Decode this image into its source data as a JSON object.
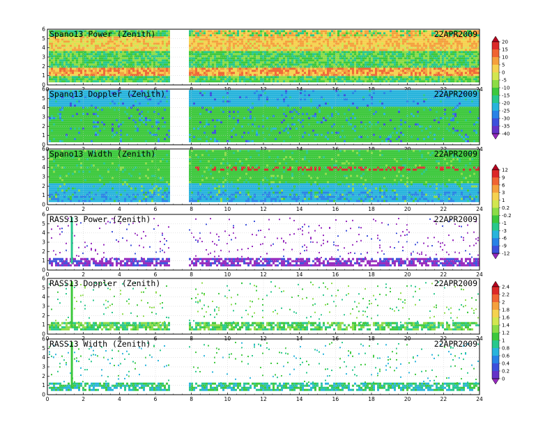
{
  "chart_data": [
    {
      "type": "heatmap",
      "title": "Spano13 Power (Zenith)",
      "date": "22APR2009",
      "xlim": [
        0,
        24
      ],
      "ylim": [
        0,
        6
      ],
      "xticks": [
        "0",
        "2",
        "4",
        "6",
        "8",
        "10",
        "12",
        "14",
        "16",
        "18",
        "20",
        "22",
        "24"
      ],
      "yticks": [
        "0",
        "1",
        "2",
        "3",
        "4",
        "5",
        "6"
      ],
      "data_gap_hours": [
        6.7,
        7.8
      ],
      "grid": true,
      "colorbar_group": "A"
    },
    {
      "type": "heatmap",
      "title": "Spano13 Doppler (Zenith)",
      "date": "22APR2009",
      "xlim": [
        0,
        24
      ],
      "ylim": [
        0,
        6
      ],
      "xticks": [
        "0",
        "2",
        "4",
        "6",
        "8",
        "10",
        "12",
        "14",
        "16",
        "18",
        "20",
        "22",
        "24"
      ],
      "yticks": [
        "0",
        "1",
        "2",
        "3",
        "4",
        "5",
        "6"
      ],
      "data_gap_hours": [
        6.7,
        7.8
      ],
      "grid": true,
      "colorbar_group": "A"
    },
    {
      "type": "heatmap",
      "title": "Spano13 Width (Zenith)",
      "date": "22APR2009",
      "xlim": [
        0,
        24
      ],
      "ylim": [
        0,
        6
      ],
      "xticks": [
        "0",
        "2",
        "4",
        "6",
        "8",
        "10",
        "12",
        "14",
        "16",
        "18",
        "20",
        "22",
        "24"
      ],
      "yticks": [
        "0",
        "1",
        "2",
        "3",
        "4",
        "5",
        "6"
      ],
      "data_gap_hours": [
        6.7,
        7.8
      ],
      "grid": true,
      "colorbar_group": "B"
    },
    {
      "type": "heatmap",
      "title": "RASS13 Power (Zenith)",
      "date": "22APR2009",
      "xlim": [
        0,
        24
      ],
      "ylim": [
        0,
        6
      ],
      "xticks": [
        "0",
        "2",
        "4",
        "6",
        "8",
        "10",
        "12",
        "14",
        "16",
        "18",
        "20",
        "22",
        "24"
      ],
      "yticks": [
        "0",
        "1",
        "2",
        "3",
        "4",
        "5",
        "6"
      ],
      "data_gap_hours": [
        6.7,
        7.8
      ],
      "grid": true,
      "colorbar_group": "B"
    },
    {
      "type": "heatmap",
      "title": "RASS13 Doppler (Zenith)",
      "date": "22APR2009",
      "xlim": [
        0,
        24
      ],
      "ylim": [
        0,
        6
      ],
      "xticks": [
        "0",
        "2",
        "4",
        "6",
        "8",
        "10",
        "12",
        "14",
        "16",
        "18",
        "20",
        "22",
        "24"
      ],
      "yticks": [
        "0",
        "1",
        "2",
        "3",
        "4",
        "5",
        "6"
      ],
      "data_gap_hours": [
        6.7,
        7.8
      ],
      "grid": true,
      "colorbar_group": "C"
    },
    {
      "type": "heatmap",
      "title": "RASS13 Width (Zenith)",
      "date": "22APR2009",
      "xlim": [
        0,
        24
      ],
      "ylim": [
        0,
        6
      ],
      "xticks": [
        "0",
        "2",
        "4",
        "6",
        "8",
        "10",
        "12",
        "14",
        "16",
        "18",
        "20",
        "22",
        "24"
      ],
      "yticks": [
        "0",
        "1",
        "2",
        "3",
        "4",
        "5",
        "6"
      ],
      "data_gap_hours": [
        6.7,
        7.8
      ],
      "grid": true,
      "colorbar_group": "C"
    }
  ],
  "colorbars": [
    {
      "id": "A",
      "labels": [
        "20",
        "15",
        "10",
        "5",
        "0",
        "-5",
        "-10",
        "-15",
        "-20",
        "-25",
        "-30",
        "-35",
        "-40"
      ],
      "colors": [
        "#b4001e",
        "#dc2828",
        "#f06432",
        "#f5a03c",
        "#f5d250",
        "#d2e650",
        "#8cdc46",
        "#3cc83c",
        "#28c88c",
        "#28b4dc",
        "#2882e6",
        "#3c50dc",
        "#6432c8",
        "#9628be"
      ]
    },
    {
      "id": "B",
      "labels": [
        "12",
        "9",
        "6",
        "3",
        "1",
        "0.2",
        "-0.2",
        "-1",
        "-3",
        "-6",
        "-9",
        "-12"
      ],
      "colors": [
        "#b4001e",
        "#dc2828",
        "#f06432",
        "#f5a03c",
        "#f5d250",
        "#d2e650",
        "#8cdc46",
        "#3cc83c",
        "#28c88c",
        "#28b4dc",
        "#2882e6",
        "#3c50dc",
        "#9628be"
      ]
    },
    {
      "id": "C",
      "labels": [
        "2.4",
        "2.2",
        "2",
        "1.8",
        "1.6",
        "1.4",
        "1.2",
        "1",
        "0.8",
        "0.6",
        "0.4",
        "0.2",
        "0"
      ],
      "colors": [
        "#b4001e",
        "#dc2828",
        "#f06432",
        "#f5a03c",
        "#f5d250",
        "#d2e650",
        "#8cdc46",
        "#3cc83c",
        "#28c88c",
        "#28b4dc",
        "#2882e6",
        "#3c50dc",
        "#6432c8",
        "#9628be"
      ]
    }
  ]
}
